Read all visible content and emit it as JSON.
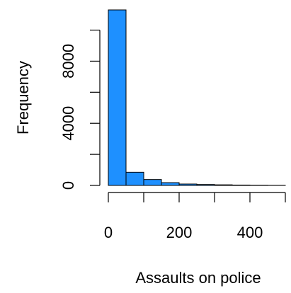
{
  "chart_data": {
    "type": "bar",
    "subtype": "histogram",
    "title": "",
    "xlabel": "Assaults on police",
    "ylabel": "Frequency",
    "bar_color": "#1E90FF",
    "bin_edges": [
      0,
      50,
      100,
      150,
      200,
      250,
      300,
      350,
      400,
      450,
      500
    ],
    "values": [
      11300,
      850,
      380,
      180,
      90,
      60,
      40,
      25,
      15,
      8
    ],
    "xlim": [
      0,
      510
    ],
    "ylim": [
      0,
      11300
    ],
    "x_ticks": [
      0,
      100,
      200,
      300,
      400,
      500
    ],
    "x_tick_labels": [
      "0",
      "",
      "200",
      "",
      "400",
      ""
    ],
    "y_ticks": [
      0,
      2000,
      4000,
      6000,
      8000,
      10000
    ],
    "y_tick_labels": [
      "0",
      "",
      "4000",
      "",
      "8000",
      ""
    ],
    "grid": false,
    "legend": "none"
  }
}
